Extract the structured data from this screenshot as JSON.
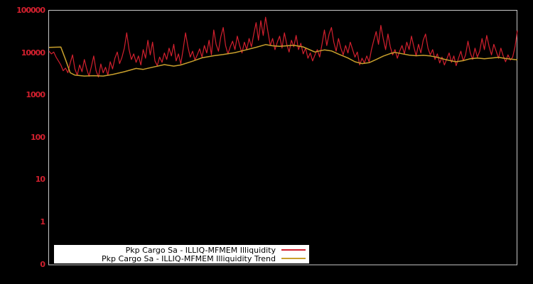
{
  "figure": {
    "background": "#000000",
    "border_color": "#c8c8c8",
    "axis_label_color": "#d2202e"
  },
  "legend": {
    "background": "#ffffff",
    "entries": [
      {
        "label": "Pkp Cargo Sa - ILLIQ-MFMEM Illiquidity",
        "color": "#d2202e"
      },
      {
        "label": "Pkp Cargo Sa - ILLIQ-MFMEM Illiquidity Trend",
        "color": "#c9a02c"
      }
    ]
  },
  "chart_data": {
    "type": "line",
    "title": "",
    "xlabel": "",
    "ylabel": "",
    "y_scale": "symlog",
    "grid": false,
    "legend_position": "bottom-left-inside",
    "x_count": 200,
    "y_ticks": [
      {
        "label": "100000",
        "value": 100000
      },
      {
        "label": "10000",
        "value": 10000
      },
      {
        "label": "1000",
        "value": 1000
      },
      {
        "label": "100",
        "value": 100
      },
      {
        "label": "10",
        "value": 10
      },
      {
        "label": "1",
        "value": 1
      },
      {
        "label": "0",
        "value": 0
      }
    ],
    "series": [
      {
        "name": "Pkp Cargo Sa - ILLIQ-MFMEM Illiquidity",
        "color": "#d2202e",
        "values": [
          11000,
          9500,
          10500,
          8000,
          6500,
          5200,
          3800,
          4400,
          3400,
          5800,
          9000,
          4200,
          3000,
          5200,
          3600,
          7000,
          4200,
          2800,
          4800,
          8500,
          3800,
          2700,
          5500,
          3400,
          4600,
          3000,
          6200,
          4200,
          7500,
          10500,
          5600,
          8000,
          13000,
          30000,
          12000,
          7000,
          9500,
          6000,
          8500,
          5200,
          12000,
          7500,
          20000,
          9000,
          18000,
          6500,
          5000,
          8000,
          6000,
          10000,
          7000,
          13000,
          8500,
          16000,
          6500,
          9500,
          5500,
          12500,
          30000,
          14000,
          8000,
          11000,
          6800,
          9000,
          12500,
          8000,
          15000,
          10000,
          20000,
          9000,
          35000,
          16000,
          11000,
          24000,
          40000,
          15000,
          9500,
          14000,
          19000,
          12000,
          25000,
          15000,
          10000,
          18000,
          12000,
          22000,
          14000,
          28000,
          52000,
          20000,
          58000,
          26000,
          70000,
          32000,
          15000,
          22000,
          12000,
          18000,
          25000,
          13000,
          30000,
          16000,
          10500,
          20000,
          14000,
          26000,
          12000,
          17000,
          9500,
          13000,
          7500,
          10000,
          6500,
          9000,
          12000,
          8000,
          16000,
          35000,
          15000,
          28000,
          40000,
          18000,
          11000,
          22000,
          13000,
          9000,
          15000,
          10000,
          18000,
          12000,
          8000,
          10500,
          5200,
          7500,
          5800,
          8500,
          6200,
          12000,
          20000,
          32000,
          16000,
          45000,
          22000,
          12000,
          28000,
          14000,
          9000,
          12000,
          7500,
          11000,
          15000,
          9500,
          18000,
          12000,
          25000,
          14000,
          8500,
          16000,
          10000,
          20000,
          28000,
          13000,
          9000,
          12000,
          7000,
          9500,
          5800,
          8000,
          5200,
          7200,
          10000,
          6000,
          8500,
          5000,
          7500,
          11000,
          6500,
          9000,
          19000,
          10000,
          7000,
          13000,
          8000,
          11000,
          22000,
          12000,
          26000,
          14000,
          9000,
          16000,
          11000,
          7500,
          13000,
          8500,
          6200,
          9000,
          6800,
          8000,
          14000,
          34000
        ]
      },
      {
        "name": "Pkp Cargo Sa - ILLIQ-MFMEM Illiquidity Trend",
        "color": "#c9a02c",
        "x": [
          0,
          5,
          7,
          9,
          11,
          15,
          19,
          23,
          27,
          32,
          37,
          40,
          44,
          49,
          53,
          56,
          61,
          65,
          70,
          74,
          79,
          83,
          88,
          92,
          95,
          98,
          101,
          104,
          108,
          110,
          113,
          115,
          117,
          120,
          123,
          127,
          130,
          133,
          136,
          139,
          142,
          145,
          147,
          150,
          153,
          156,
          159,
          162,
          165,
          168,
          171,
          173,
          176,
          179,
          182,
          185,
          188,
          191,
          194,
          197,
          199
        ],
        "values": [
          13500,
          13800,
          7000,
          3400,
          3000,
          2850,
          2900,
          2850,
          3100,
          3600,
          4300,
          4100,
          4600,
          5300,
          4900,
          5200,
          6400,
          7700,
          8600,
          9200,
          10200,
          11600,
          13600,
          15800,
          14800,
          14300,
          14800,
          15200,
          13900,
          12400,
          10500,
          11200,
          11800,
          11200,
          9400,
          7600,
          6200,
          5600,
          5900,
          7000,
          8400,
          9700,
          10300,
          9600,
          8900,
          8600,
          8800,
          8500,
          7900,
          7100,
          6500,
          6200,
          6600,
          7300,
          7600,
          7300,
          7600,
          7900,
          7400,
          7100,
          6900
        ]
      }
    ]
  }
}
